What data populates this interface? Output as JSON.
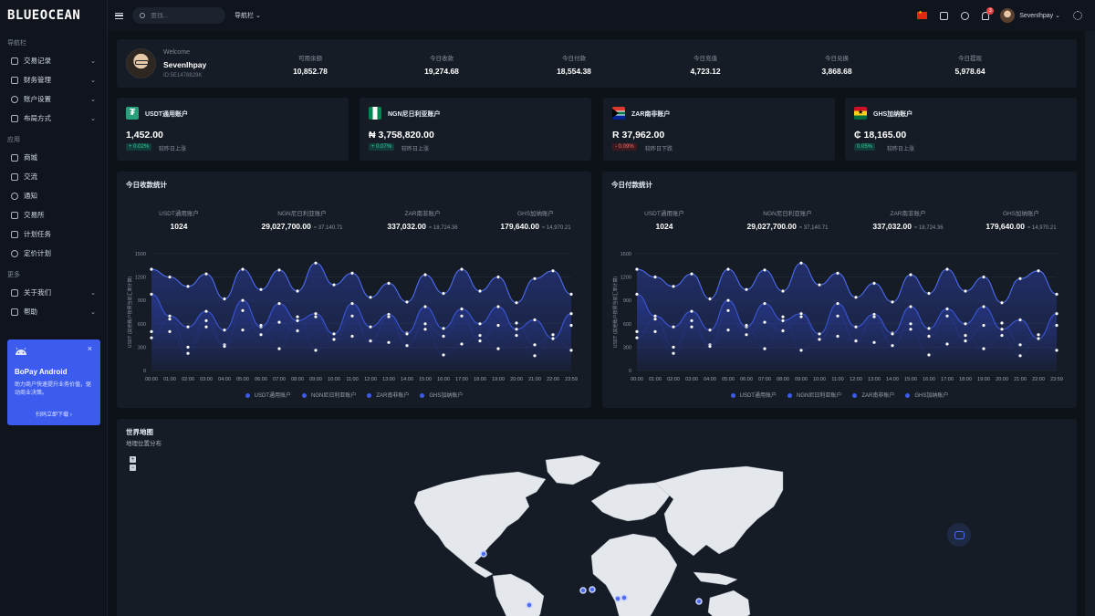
{
  "brand": "BLUEOCEAN",
  "sidebar": {
    "section1": "导航栏",
    "items1": [
      {
        "label": "交易记录",
        "icon": "transactions-icon",
        "chev": "⌄"
      },
      {
        "label": "财务管理",
        "icon": "finance-icon",
        "chev": "⌄"
      },
      {
        "label": "账户设置",
        "icon": "user-icon",
        "chev": "⌄"
      },
      {
        "label": "布局方式",
        "icon": "layout-icon",
        "chev": "⌄"
      }
    ],
    "section2": "应用",
    "items2": [
      {
        "label": "商城",
        "icon": "store-icon"
      },
      {
        "label": "交流",
        "icon": "chat-icon"
      },
      {
        "label": "通知",
        "icon": "bell-icon"
      },
      {
        "label": "交易所",
        "icon": "exchange-icon"
      },
      {
        "label": "计划任务",
        "icon": "task-icon"
      },
      {
        "label": "定价计划",
        "icon": "pricing-icon"
      }
    ],
    "section3": "更多",
    "items3": [
      {
        "label": "关于我们",
        "icon": "info-icon",
        "chev": "⌄"
      },
      {
        "label": "帮助",
        "icon": "help-icon",
        "chev": "⌄"
      }
    ],
    "promo": {
      "title": "BoPay Android",
      "desc": "助力商户快速提升业务价值，驱动商业决策。",
      "link": "扫码立即下载 ›",
      "close": "×"
    }
  },
  "topbar": {
    "search_placeholder": "查找...",
    "nav_label": "导航栏 ⌄",
    "badge": "3",
    "username": "SevenIhpay ⌄"
  },
  "welcome": {
    "greeting": "Welcome",
    "name": "SevenIhpay",
    "id": "ID:5E1478829K",
    "stats": [
      {
        "label": "可用余额",
        "value": "10,852.78"
      },
      {
        "label": "今日收款",
        "value": "19,274.68"
      },
      {
        "label": "今日付款",
        "value": "18,554.38"
      },
      {
        "label": "今日充值",
        "value": "4,723.12"
      },
      {
        "label": "今日兑换",
        "value": "3,868.68"
      },
      {
        "label": "今日提现",
        "value": "5,978.64"
      }
    ]
  },
  "accounts": [
    {
      "name": "USDT通用账户",
      "amount": "1,452.00",
      "change": "+ 0.02%",
      "dir": "up",
      "cmp": "较昨日上涨",
      "flag": "usdt"
    },
    {
      "name": "NGN尼日利亚账户",
      "amount": "₦ 3,758,820.00",
      "change": "+ 0.07%",
      "dir": "up",
      "cmp": "较昨日上涨",
      "flag": "ngn"
    },
    {
      "name": "ZAR南非账户",
      "amount": "R 37,962.00",
      "change": "- 0.09%",
      "dir": "down",
      "cmp": "较昨日下跌",
      "flag": "zar"
    },
    {
      "name": "GHS加纳账户",
      "amount": "₵ 18,165.00",
      "change": "0.05%",
      "dir": "up",
      "cmp": "较昨日上涨",
      "flag": "ghs"
    }
  ],
  "charts": [
    {
      "title": "今日收款统计",
      "stats": [
        {
          "label": "USDT通用账户",
          "value": "1024",
          "sub": ""
        },
        {
          "label": "NGN尼日利亚账户",
          "value": "29,027,700.00",
          "sub": "≈ 37,140.71"
        },
        {
          "label": "ZAR南非账户",
          "value": "337,032.00",
          "sub": "≈ 18,724.36"
        },
        {
          "label": "GHS加纳账户",
          "value": "179,640.00",
          "sub": "≈ 14,970.21"
        }
      ]
    },
    {
      "title": "今日付款统计",
      "stats": [
        {
          "label": "USDT通用账户",
          "value": "1024",
          "sub": ""
        },
        {
          "label": "NGN尼日利亚账户",
          "value": "29,027,700.00",
          "sub": "≈ 37,140.71"
        },
        {
          "label": "ZAR南非账户",
          "value": "337,032.00",
          "sub": "≈ 18,724.36"
        },
        {
          "label": "GHS加纳账户",
          "value": "179,640.00",
          "sub": "≈ 14,970.21"
        }
      ]
    }
  ],
  "chart_data": [
    {
      "type": "area",
      "ylabel": "USDT (其他账户按照当前汇率计算)",
      "ylim": [
        0,
        1500
      ],
      "yticks": [
        0,
        300,
        600,
        900,
        1200,
        1500
      ],
      "x": [
        "00:00",
        "01:00",
        "02:00",
        "03:00",
        "04:00",
        "05:00",
        "06:00",
        "07:00",
        "08:00",
        "09:00",
        "10:00",
        "11:00",
        "12:00",
        "13:00",
        "14:00",
        "15:00",
        "16:00",
        "17:00",
        "18:00",
        "19:00",
        "20:00",
        "21:00",
        "22:00",
        "23:59"
      ],
      "series": [
        {
          "name": "USDT通用账户",
          "values": [
            1300,
            1200,
            1080,
            1240,
            920,
            1300,
            1040,
            1290,
            1020,
            1380,
            1100,
            1250,
            940,
            1120,
            880,
            1230,
            990,
            1300,
            1020,
            1200,
            870,
            1180,
            1280,
            980
          ]
        },
        {
          "name": "NGN尼日利亚账户",
          "values": [
            980,
            700,
            560,
            760,
            520,
            900,
            560,
            860,
            640,
            730,
            470,
            860,
            560,
            720,
            480,
            820,
            540,
            790,
            600,
            820,
            530,
            650,
            410,
            730
          ]
        },
        {
          "name": "ZAR南非账户",
          "values": [
            420,
            660,
            300,
            640,
            330,
            770,
            460,
            620,
            510,
            690,
            400,
            700,
            380,
            690,
            320,
            600,
            440,
            700,
            380,
            580,
            610,
            330,
            460,
            580
          ]
        },
        {
          "name": "GHS加纳账户",
          "values": [
            500,
            500,
            220,
            560,
            310,
            520,
            580,
            280,
            690,
            260,
            400,
            440,
            380,
            360,
            470,
            530,
            200,
            340,
            450,
            280,
            450,
            190,
            460,
            260
          ]
        }
      ],
      "legend": "bottom"
    },
    {
      "type": "area",
      "ylabel": "USDT (其他账户按照当前汇率计算)",
      "ylim": [
        0,
        1500
      ],
      "yticks": [
        0,
        300,
        600,
        900,
        1200,
        1500
      ],
      "x": [
        "00:00",
        "01:00",
        "02:00",
        "03:00",
        "04:00",
        "05:00",
        "06:00",
        "07:00",
        "08:00",
        "09:00",
        "10:00",
        "11:00",
        "12:00",
        "13:00",
        "14:00",
        "15:00",
        "16:00",
        "17:00",
        "18:00",
        "19:00",
        "20:00",
        "21:00",
        "22:00",
        "23:59"
      ],
      "series": [
        {
          "name": "USDT通用账户",
          "values": [
            1300,
            1200,
            1080,
            1240,
            920,
            1300,
            1040,
            1290,
            1020,
            1380,
            1100,
            1250,
            940,
            1120,
            880,
            1230,
            990,
            1300,
            1020,
            1200,
            870,
            1180,
            1280,
            980
          ]
        },
        {
          "name": "NGN尼日利亚账户",
          "values": [
            980,
            700,
            560,
            760,
            520,
            900,
            560,
            860,
            640,
            730,
            470,
            860,
            560,
            720,
            480,
            820,
            540,
            790,
            600,
            820,
            530,
            650,
            410,
            730
          ]
        },
        {
          "name": "ZAR南非账户",
          "values": [
            420,
            660,
            300,
            640,
            330,
            770,
            460,
            620,
            510,
            690,
            400,
            700,
            380,
            690,
            320,
            600,
            440,
            700,
            380,
            580,
            610,
            330,
            460,
            580
          ]
        },
        {
          "name": "GHS加纳账户",
          "values": [
            500,
            500,
            220,
            560,
            310,
            520,
            580,
            280,
            690,
            260,
            400,
            440,
            380,
            360,
            470,
            530,
            200,
            340,
            450,
            280,
            450,
            190,
            460,
            260
          ]
        }
      ],
      "legend": "bottom"
    }
  ],
  "map": {
    "title": "世界地图",
    "subtitle": "地理位置分布",
    "zoom_in": "+",
    "zoom_out": "−"
  }
}
